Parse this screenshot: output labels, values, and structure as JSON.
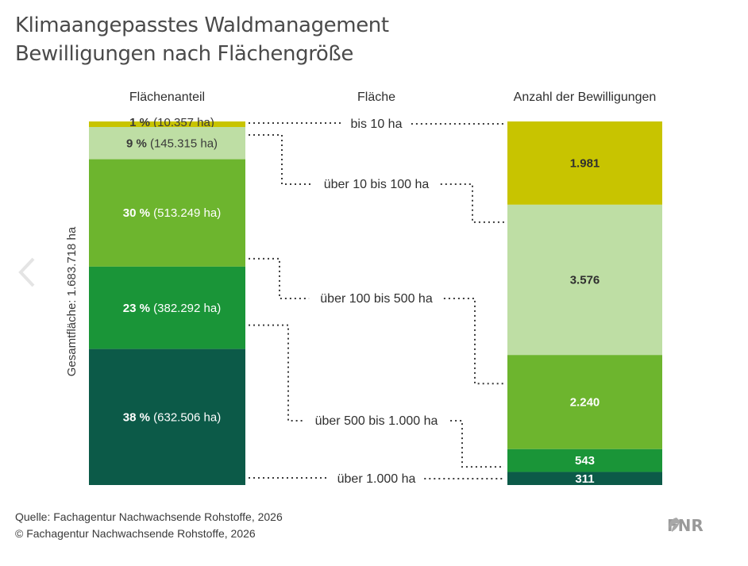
{
  "title": {
    "line1": "Klimaangepasstes Waldmanagement",
    "line2": "Bewilligungen nach Flächengröße"
  },
  "chart_data": {
    "type": "bar",
    "left_bar": {
      "header": "Flächenanteil",
      "side_label": "Gesamtfläche: 1.683.718 ha",
      "segments": [
        {
          "percent": "1 %",
          "area": "(10.357 ha)",
          "share": 1,
          "color": "#c8c400",
          "text_color": "#3a3a3a"
        },
        {
          "percent": "9 %",
          "area": "(145.315 ha)",
          "share": 9,
          "color": "#bedea4",
          "text_color": "#3a3a3a"
        },
        {
          "percent": "30 %",
          "area": "(513.249 ha)",
          "share": 30,
          "color": "#6db52e",
          "text_color": "#ffffff"
        },
        {
          "percent": "23 %",
          "area": "(382.292 ha)",
          "share": 23,
          "color": "#1a9538",
          "text_color": "#ffffff"
        },
        {
          "percent": "38 %",
          "area": "(632.506 ha)",
          "share": 38,
          "color": "#0c5a48",
          "text_color": "#ffffff"
        }
      ]
    },
    "middle": {
      "header": "Fläche",
      "categories": [
        "bis 10 ha",
        "über 10 bis 100 ha",
        "über 100 bis 500 ha",
        "über 500 bis 1.000 ha",
        "über 1.000 ha"
      ]
    },
    "right_bar": {
      "header": "Anzahl der Bewilligungen",
      "segments": [
        {
          "label": "1.981",
          "value": 1981,
          "color": "#c8c400",
          "text_color": "#2f2f2f"
        },
        {
          "label": "3.576",
          "value": 3576,
          "color": "#bedea4",
          "text_color": "#2f2f2f"
        },
        {
          "label": "2.240",
          "value": 2240,
          "color": "#6db52e",
          "text_color": "#ffffff"
        },
        {
          "label": "543",
          "value": 543,
          "color": "#1a9538",
          "text_color": "#ffffff"
        },
        {
          "label": "311",
          "value": 311,
          "color": "#0c5a48",
          "text_color": "#ffffff"
        }
      ]
    }
  },
  "footer": {
    "source": "Quelle: Fachagentur Nachwachsende Rohstoffe, 2026",
    "copyright": "© Fachagentur Nachwachsende Rohstoffe, 2026"
  },
  "logo": {
    "text": "FNR",
    "color": "#9a9a9a"
  },
  "nav": {
    "prev_icon": "chevron-left-icon"
  }
}
